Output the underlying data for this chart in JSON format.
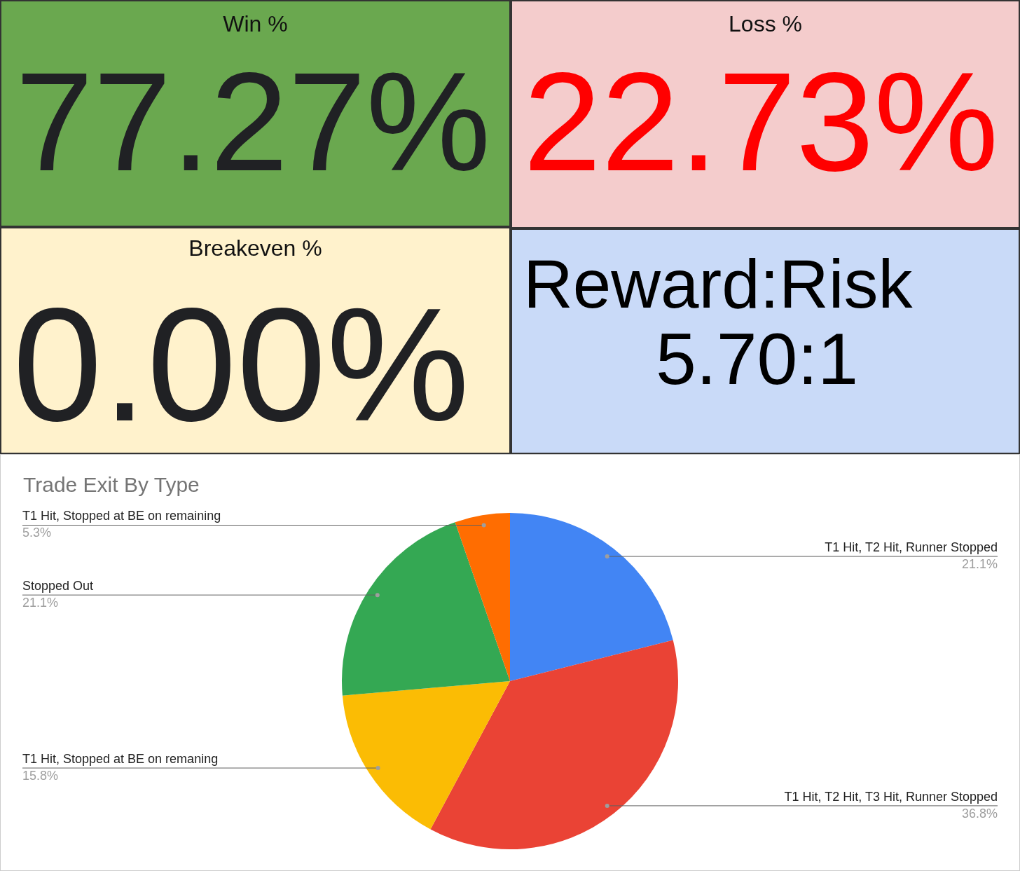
{
  "chart_data": [
    {
      "type": "other",
      "title": "Win %",
      "annotations": [
        "77.27%"
      ]
    },
    {
      "type": "other",
      "title": "Loss %",
      "annotations": [
        "22.73%"
      ]
    },
    {
      "type": "other",
      "title": "Breakeven %",
      "annotations": [
        "0.00%"
      ]
    },
    {
      "type": "other",
      "title": "Reward:Risk",
      "annotations": [
        "5.70:1"
      ]
    },
    {
      "type": "pie",
      "title": "Trade Exit By Type",
      "categories": [
        "T1 Hit, T2 Hit, Runner Stopped",
        "T1 Hit, T2 Hit, T3 Hit, Runner Stopped",
        "T1 Hit, Stopped at BE on remaning",
        "Stopped Out",
        "T1 Hit, Stopped at BE on remaining"
      ],
      "values": [
        21.1,
        36.8,
        15.8,
        21.1,
        5.3
      ],
      "value_labels": [
        "21.1%",
        "36.8%",
        "15.8%",
        "21.1%",
        "5.3%"
      ],
      "colors": [
        "#4285f4",
        "#ea4335",
        "#fbbc04",
        "#34a853",
        "#ff6d01"
      ],
      "legend": false
    }
  ]
}
